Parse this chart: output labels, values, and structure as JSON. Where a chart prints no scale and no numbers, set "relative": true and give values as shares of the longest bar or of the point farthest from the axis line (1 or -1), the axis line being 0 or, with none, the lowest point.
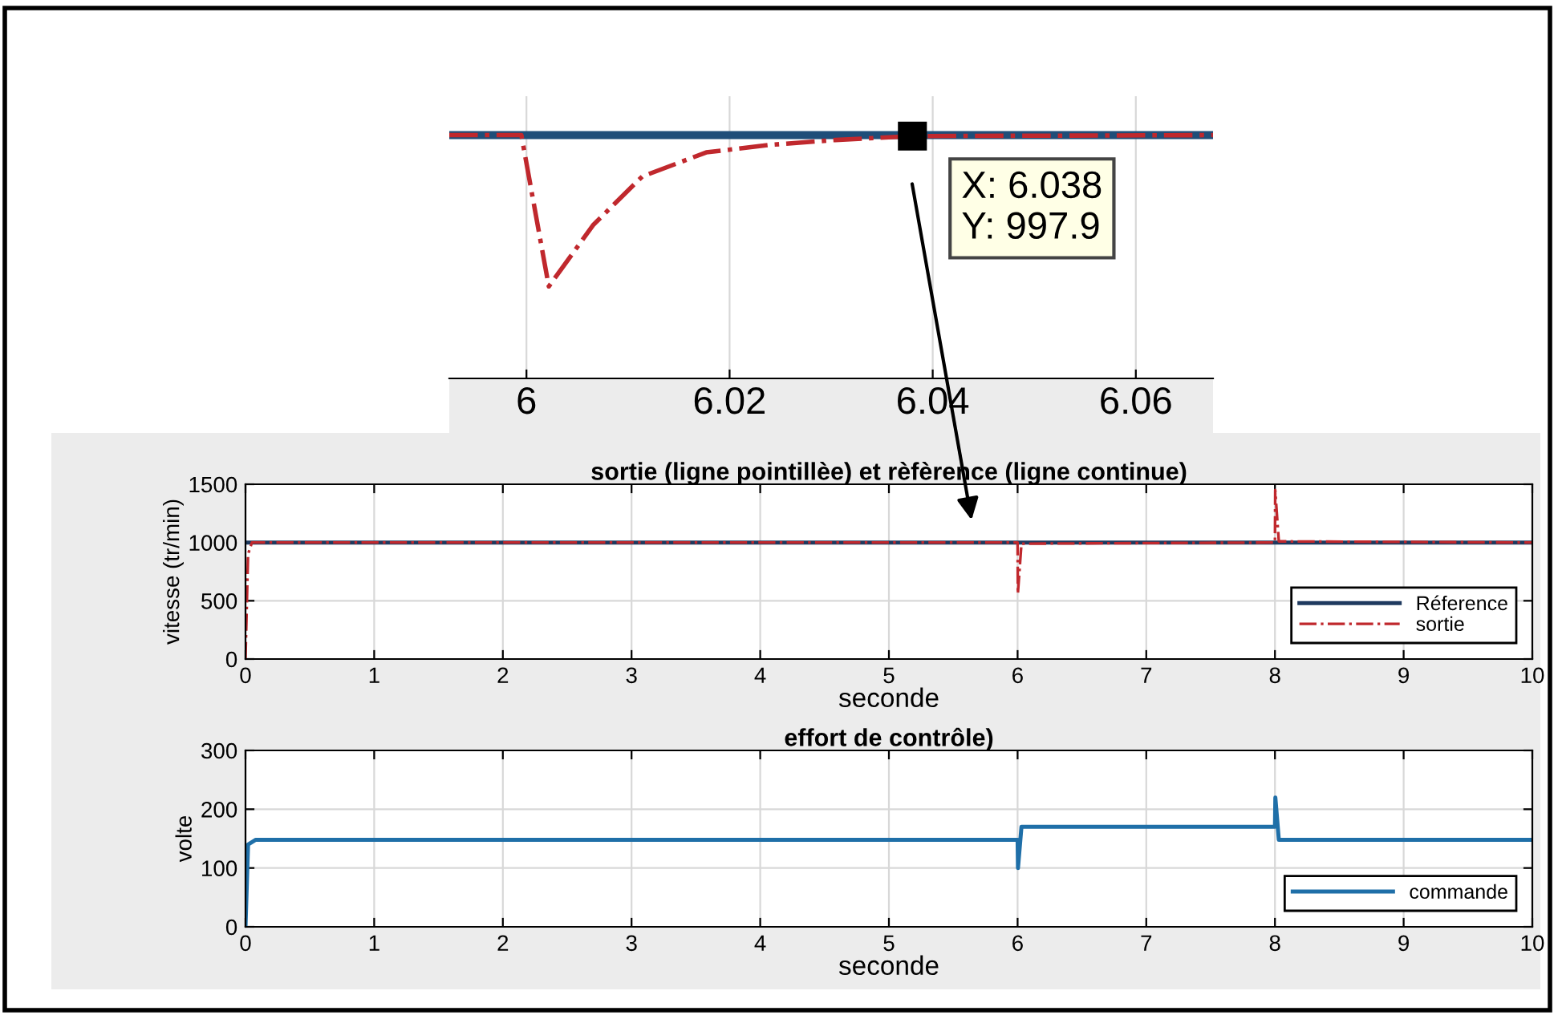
{
  "chart_data": [
    {
      "type": "line",
      "relative": true,
      "xlim": [
        5.9924,
        6.0676
      ],
      "xticks": [
        6,
        6.02,
        6.04,
        6.06
      ],
      "tick_labels": "x",
      "grid": "x",
      "series": [
        {
          "color": "#1f4e79",
          "line_style": "solid",
          "x": [
            5.9924,
            6.0676
          ],
          "values": [
            1,
            1
          ]
        },
        {
          "color": "#c0282d",
          "line_style": "dashdot",
          "x": [
            5.9924,
            5.9995,
            6.0022,
            6.0066,
            6.0114,
            6.0177,
            6.024,
            6.0304,
            6.038,
            6.0676
          ],
          "values": [
            1,
            1,
            0.378,
            0.632,
            0.83,
            0.929,
            0.96,
            0.98,
            0.996,
            1
          ]
        }
      ],
      "annotations": [
        {
          "text": "X: 6.038\nY: 997.9",
          "x": 6.038,
          "y": 0.996
        }
      ]
    },
    {
      "type": "line",
      "title": "sortie (ligne pointillèe) et rèfèrence (ligne continue)",
      "xlabel": "seconde",
      "ylabel": "vitesse (tr/min)",
      "xlim": [
        0,
        10
      ],
      "xticks": [
        0,
        1,
        2,
        3,
        4,
        5,
        6,
        7,
        8,
        9,
        10
      ],
      "ylim": [
        0,
        1500
      ],
      "yticks": [
        0,
        500,
        1000,
        1500
      ],
      "grid": true,
      "legend": "bottom right",
      "series": [
        {
          "name": "Réference",
          "color": "#1f3a5f",
          "line_style": "solid",
          "x": [
            0,
            10
          ],
          "values": [
            1000,
            1000
          ]
        },
        {
          "name": "sortie",
          "color": "#c0282d",
          "line_style": "dashdot",
          "x": [
            0,
            0.02,
            0.05,
            6.0,
            6.002,
            6.03,
            8.0,
            8.002,
            8.03,
            10
          ],
          "values": [
            0,
            900,
            1000,
            1000,
            560,
            990,
            1000,
            1450,
            1010,
            1000
          ]
        }
      ]
    },
    {
      "type": "line",
      "title": "effort de contrôle)",
      "xlabel": "seconde",
      "ylabel": "volte",
      "xlim": [
        0,
        10
      ],
      "xticks": [
        0,
        1,
        2,
        3,
        4,
        5,
        6,
        7,
        8,
        9,
        10
      ],
      "ylim": [
        0,
        300
      ],
      "yticks": [
        0,
        100,
        200,
        300
      ],
      "grid": true,
      "legend": "bottom right",
      "series": [
        {
          "name": "commande",
          "color": "#1f6fa8",
          "line_style": "solid",
          "x": [
            0,
            0.02,
            0.08,
            6.0,
            6.003,
            6.03,
            8.0,
            8.003,
            8.03,
            10
          ],
          "values": [
            0,
            140,
            148,
            148,
            100,
            170,
            170,
            220,
            148,
            148
          ]
        }
      ]
    }
  ]
}
